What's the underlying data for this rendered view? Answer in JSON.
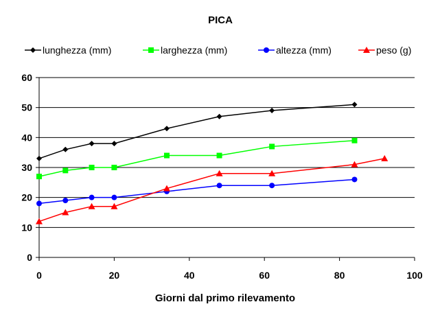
{
  "chart_data": {
    "type": "line",
    "title": "PICA",
    "xlabel": "Giorni dal primo rilevamento",
    "ylabel": "",
    "xlim": [
      0,
      100
    ],
    "ylim": [
      0,
      60
    ],
    "xticks": [
      0,
      20,
      40,
      60,
      80,
      100
    ],
    "yticks": [
      0,
      10,
      20,
      30,
      40,
      50,
      60
    ],
    "grid": "horizontal",
    "legend": "top",
    "series": [
      {
        "name": "lunghezza (mm)",
        "color": "#000000",
        "marker": "diamond",
        "x": [
          0,
          7,
          14,
          20,
          34,
          48,
          62,
          84
        ],
        "y": [
          33,
          36,
          38,
          38,
          43,
          47,
          49,
          51
        ]
      },
      {
        "name": "larghezza (mm)",
        "color": "#00ff00",
        "marker": "square",
        "x": [
          0,
          7,
          14,
          20,
          34,
          48,
          62,
          84
        ],
        "y": [
          27,
          29,
          30,
          30,
          34,
          34,
          37,
          39
        ]
      },
      {
        "name": "altezza (mm)",
        "color": "#0000ff",
        "marker": "circle",
        "x": [
          0,
          7,
          14,
          20,
          34,
          48,
          62,
          84
        ],
        "y": [
          18,
          19,
          20,
          20,
          22,
          24,
          24,
          26
        ]
      },
      {
        "name": "peso (g)",
        "color": "#ff0000",
        "marker": "triangle",
        "x": [
          0,
          7,
          14,
          20,
          34,
          48,
          62,
          84,
          92
        ],
        "y": [
          12,
          15,
          17,
          17,
          23,
          28,
          28,
          31,
          33
        ]
      }
    ]
  }
}
